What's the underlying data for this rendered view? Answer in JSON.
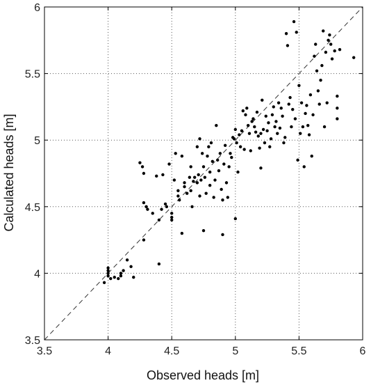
{
  "chart_data": {
    "type": "scatter",
    "title": "",
    "xlabel": "Observed heads [m]",
    "ylabel": "Calculated heads [m]",
    "xlim": [
      3.5,
      6
    ],
    "ylim": [
      3.5,
      6
    ],
    "xticks": [
      "3.5",
      "4",
      "4.5",
      "5",
      "5.5",
      "6"
    ],
    "yticks": [
      "3.5",
      "4",
      "4.5",
      "5",
      "5.5",
      "6"
    ],
    "grid": true,
    "reference_line": {
      "style": "dashed",
      "from": [
        3.5,
        3.5
      ],
      "to": [
        6,
        6
      ]
    },
    "marker_color": "#000000",
    "series": [
      {
        "points": [
          [
            3.97,
            3.93
          ],
          [
            4.0,
            3.98
          ],
          [
            4.0,
            4.0
          ],
          [
            4.0,
            4.02
          ],
          [
            4.0,
            4.04
          ],
          [
            4.02,
            3.96
          ],
          [
            4.05,
            3.97
          ],
          [
            4.08,
            3.96
          ],
          [
            4.1,
            3.98
          ],
          [
            4.1,
            4.0
          ],
          [
            4.12,
            4.02
          ],
          [
            4.15,
            4.1
          ],
          [
            4.18,
            4.05
          ],
          [
            4.2,
            3.97
          ],
          [
            4.25,
            4.83
          ],
          [
            4.27,
            4.8
          ],
          [
            4.28,
            4.75
          ],
          [
            4.28,
            4.53
          ],
          [
            4.28,
            4.25
          ],
          [
            4.3,
            4.5
          ],
          [
            4.31,
            4.48
          ],
          [
            4.35,
            4.45
          ],
          [
            4.38,
            4.73
          ],
          [
            4.4,
            4.07
          ],
          [
            4.4,
            4.4
          ],
          [
            4.42,
            4.48
          ],
          [
            4.43,
            4.74
          ],
          [
            4.45,
            4.52
          ],
          [
            4.46,
            4.5
          ],
          [
            4.48,
            4.82
          ],
          [
            4.5,
            4.4
          ],
          [
            4.5,
            4.42
          ],
          [
            4.5,
            4.45
          ],
          [
            4.52,
            4.7
          ],
          [
            4.53,
            4.9
          ],
          [
            4.55,
            4.58
          ],
          [
            4.55,
            4.62
          ],
          [
            4.56,
            4.55
          ],
          [
            4.58,
            4.88
          ],
          [
            4.58,
            4.3
          ],
          [
            4.6,
            4.65
          ],
          [
            4.6,
            4.68
          ],
          [
            4.62,
            4.6
          ],
          [
            4.64,
            4.72
          ],
          [
            4.65,
            4.8
          ],
          [
            4.65,
            4.62
          ],
          [
            4.66,
            4.5
          ],
          [
            4.67,
            4.69
          ],
          [
            4.68,
            4.72
          ],
          [
            4.7,
            4.95
          ],
          [
            4.7,
            4.68
          ],
          [
            4.71,
            4.74
          ],
          [
            4.72,
            4.58
          ],
          [
            4.72,
            5.01
          ],
          [
            4.73,
            4.7
          ],
          [
            4.74,
            4.9
          ],
          [
            4.75,
            4.8
          ],
          [
            4.75,
            4.32
          ],
          [
            4.76,
            4.72
          ],
          [
            4.77,
            4.6
          ],
          [
            4.78,
            4.88
          ],
          [
            4.79,
            4.95
          ],
          [
            4.8,
            4.76
          ],
          [
            4.8,
            4.66
          ],
          [
            4.81,
            4.98
          ],
          [
            4.82,
            4.84
          ],
          [
            4.83,
            4.57
          ],
          [
            4.84,
            4.7
          ],
          [
            4.85,
            5.11
          ],
          [
            4.86,
            4.85
          ],
          [
            4.87,
            4.77
          ],
          [
            4.88,
            4.9
          ],
          [
            4.89,
            4.63
          ],
          [
            4.9,
            4.55
          ],
          [
            4.9,
            4.29
          ],
          [
            4.91,
            4.82
          ],
          [
            4.92,
            4.96
          ],
          [
            4.93,
            4.68
          ],
          [
            4.94,
            4.57
          ],
          [
            4.95,
            4.8
          ],
          [
            4.96,
            4.9
          ],
          [
            4.97,
            4.87
          ],
          [
            4.98,
            5.02
          ],
          [
            4.99,
            5.01
          ],
          [
            5.0,
            4.41
          ],
          [
            5.0,
            5.08
          ],
          [
            5.01,
            4.98
          ],
          [
            5.02,
            4.76
          ],
          [
            5.03,
            5.04
          ],
          [
            5.04,
            4.95
          ],
          [
            5.05,
            5.07
          ],
          [
            5.06,
            5.22
          ],
          [
            5.07,
            4.93
          ],
          [
            5.08,
            5.19
          ],
          [
            5.09,
            5.24
          ],
          [
            5.1,
            5.11
          ],
          [
            5.11,
            5.05
          ],
          [
            5.12,
            4.92
          ],
          [
            5.13,
            5.14
          ],
          [
            5.14,
            5.16
          ],
          [
            5.15,
            5.1
          ],
          [
            5.16,
            5.06
          ],
          [
            5.17,
            5.21
          ],
          [
            5.18,
            5.03
          ],
          [
            5.19,
            4.94
          ],
          [
            5.2,
            4.79
          ],
          [
            5.2,
            5.05
          ],
          [
            5.21,
            5.3
          ],
          [
            5.22,
            5.08
          ],
          [
            5.23,
            4.98
          ],
          [
            5.24,
            5.18
          ],
          [
            5.25,
            5.07
          ],
          [
            5.26,
            5.13
          ],
          [
            5.27,
            4.95
          ],
          [
            5.28,
            5.01
          ],
          [
            5.29,
            5.19
          ],
          [
            5.3,
            5.25
          ],
          [
            5.31,
            5.1
          ],
          [
            5.32,
            5.14
          ],
          [
            5.33,
            5.05
          ],
          [
            5.34,
            5.28
          ],
          [
            5.35,
            5.09
          ],
          [
            5.36,
            5.24
          ],
          [
            5.37,
            5.18
          ],
          [
            5.38,
            4.98
          ],
          [
            5.39,
            5.02
          ],
          [
            5.4,
            5.8
          ],
          [
            5.41,
            5.71
          ],
          [
            5.42,
            5.27
          ],
          [
            5.43,
            5.32
          ],
          [
            5.44,
            5.1
          ],
          [
            5.45,
            5.23
          ],
          [
            5.46,
            5.89
          ],
          [
            5.47,
            5.16
          ],
          [
            5.48,
            5.81
          ],
          [
            5.49,
            4.85
          ],
          [
            5.5,
            5.41
          ],
          [
            5.51,
            5.05
          ],
          [
            5.52,
            5.28
          ],
          [
            5.53,
            5.1
          ],
          [
            5.54,
            4.8
          ],
          [
            5.55,
            5.2
          ],
          [
            5.56,
            5.26
          ],
          [
            5.57,
            5.11
          ],
          [
            5.58,
            5.04
          ],
          [
            5.59,
            5.34
          ],
          [
            5.6,
            4.88
          ],
          [
            5.61,
            5.19
          ],
          [
            5.62,
            5.63
          ],
          [
            5.63,
            5.72
          ],
          [
            5.64,
            5.52
          ],
          [
            5.65,
            5.37
          ],
          [
            5.66,
            5.27
          ],
          [
            5.67,
            5.45
          ],
          [
            5.68,
            5.56
          ],
          [
            5.69,
            5.82
          ],
          [
            5.7,
            5.1
          ],
          [
            5.71,
            5.66
          ],
          [
            5.72,
            5.28
          ],
          [
            5.73,
            5.75
          ],
          [
            5.74,
            5.79
          ],
          [
            5.75,
            5.72
          ],
          [
            5.76,
            5.61
          ],
          [
            5.78,
            5.67
          ],
          [
            5.8,
            5.33
          ],
          [
            5.8,
            5.24
          ],
          [
            5.8,
            5.16
          ],
          [
            5.82,
            5.68
          ],
          [
            5.93,
            5.62
          ]
        ]
      }
    ]
  }
}
